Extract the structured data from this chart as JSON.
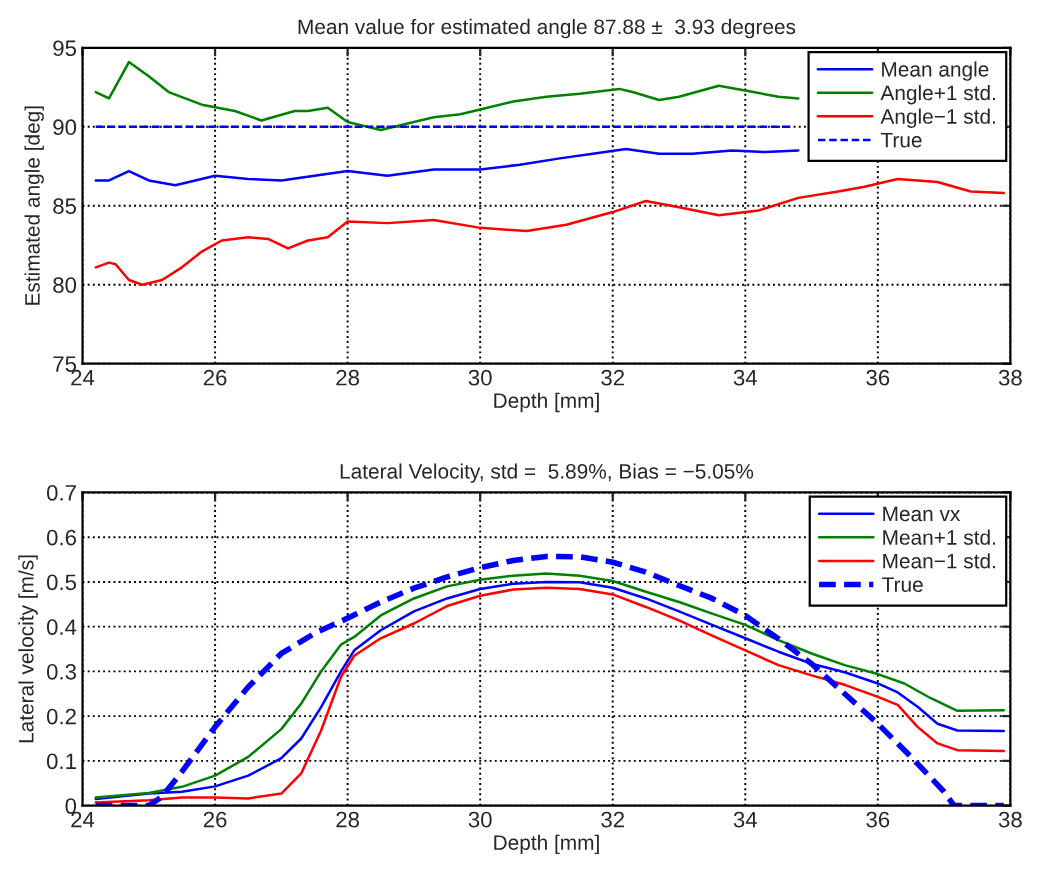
{
  "chart_data": [
    {
      "type": "line",
      "title": "Mean value for estimated angle 87.88 ±  3.93 degrees",
      "xlabel": "Depth [mm]",
      "ylabel": "Estimated angle [deg]",
      "xlim": [
        24,
        38
      ],
      "xticks": [
        24,
        26,
        28,
        30,
        32,
        34,
        36,
        38
      ],
      "ylim": [
        75,
        95
      ],
      "yticks": [
        75,
        80,
        85,
        90,
        95
      ],
      "grid": true,
      "legend": "top right",
      "series": [
        {
          "name": "Mean angle",
          "color": "#0000ff",
          "line_style": "solid",
          "x": [
            24.2,
            24.4,
            24.7,
            25.0,
            25.4,
            26.0,
            26.5,
            27.0,
            27.5,
            28.0,
            28.6,
            29.3,
            30.0,
            30.6,
            31.2,
            31.7,
            32.2,
            32.7,
            33.2,
            33.8,
            34.3,
            34.8
          ],
          "values": [
            86.6,
            86.6,
            87.2,
            86.6,
            86.3,
            86.9,
            86.7,
            86.6,
            86.9,
            87.2,
            86.9,
            87.3,
            87.3,
            87.6,
            88.0,
            88.3,
            88.6,
            88.3,
            88.3,
            88.5,
            88.4,
            88.5
          ]
        },
        {
          "name": "Angle+1 std.",
          "color": "#008000",
          "line_style": "solid",
          "x": [
            24.2,
            24.4,
            24.7,
            25.0,
            25.3,
            25.8,
            26.3,
            26.7,
            27.2,
            27.4,
            27.7,
            28.0,
            28.5,
            29.0,
            29.3,
            29.7,
            30.0,
            30.5,
            31.0,
            31.5,
            32.1,
            32.3,
            32.7,
            33.0,
            33.6,
            34.0,
            34.5,
            34.8
          ],
          "values": [
            92.2,
            91.8,
            94.1,
            93.2,
            92.2,
            91.4,
            91.0,
            90.4,
            91.0,
            91.0,
            91.2,
            90.3,
            89.8,
            90.3,
            90.6,
            90.8,
            91.1,
            91.6,
            91.9,
            92.1,
            92.4,
            92.2,
            91.7,
            91.9,
            92.6,
            92.3,
            91.9,
            91.8
          ]
        },
        {
          "name": "Angle−1 std.",
          "color": "#ff0000",
          "line_style": "solid",
          "x": [
            24.2,
            24.4,
            24.5,
            24.7,
            24.9,
            25.2,
            25.5,
            25.8,
            26.1,
            26.5,
            26.8,
            27.1,
            27.4,
            27.7,
            28.0,
            28.6,
            29.3,
            30.0,
            30.7,
            31.3,
            32.0,
            32.5,
            33.0,
            33.6,
            34.2,
            34.8,
            35.4,
            35.8,
            36.3,
            36.9,
            37.4,
            37.9
          ],
          "values": [
            81.1,
            81.4,
            81.3,
            80.3,
            80.0,
            80.3,
            81.1,
            82.1,
            82.8,
            83.0,
            82.9,
            82.3,
            82.8,
            83.0,
            84.0,
            83.9,
            84.1,
            83.6,
            83.4,
            83.8,
            84.6,
            85.3,
            84.9,
            84.4,
            84.7,
            85.5,
            85.9,
            86.2,
            86.7,
            86.5,
            85.9,
            85.8
          ]
        },
        {
          "name": "True",
          "color": "#0000ff",
          "line_style": "dashed",
          "x": [
            24.2,
            34.7
          ],
          "values": [
            90,
            90
          ]
        }
      ]
    },
    {
      "type": "line",
      "title": "Lateral Velocity, std =  5.89%, Bias = −5.05%",
      "xlabel": "Depth [mm]",
      "ylabel": "Lateral velocity [m/s]",
      "xlim": [
        24,
        38
      ],
      "xticks": [
        24,
        26,
        28,
        30,
        32,
        34,
        36,
        38
      ],
      "ylim": [
        0,
        0.7
      ],
      "yticks": [
        0,
        0.1,
        0.2,
        0.3,
        0.4,
        0.5,
        0.6,
        0.7
      ],
      "grid": true,
      "legend": "top right",
      "series": [
        {
          "name": "Mean vx",
          "color": "#0000ff",
          "line_style": "solid",
          "x": [
            24.2,
            25.0,
            25.5,
            26.0,
            26.5,
            27.0,
            27.3,
            27.6,
            27.9,
            28.1,
            28.5,
            29.0,
            29.5,
            30.0,
            30.5,
            31.0,
            31.5,
            32.0,
            32.5,
            33.0,
            33.5,
            34.0,
            34.5,
            35.0,
            35.5,
            36.0,
            36.3,
            36.6,
            36.9,
            37.2,
            37.9
          ],
          "values": [
            0.015,
            0.027,
            0.031,
            0.043,
            0.067,
            0.106,
            0.15,
            0.22,
            0.3,
            0.347,
            0.392,
            0.434,
            0.463,
            0.484,
            0.496,
            0.5,
            0.499,
            0.487,
            0.463,
            0.434,
            0.404,
            0.374,
            0.344,
            0.317,
            0.298,
            0.273,
            0.253,
            0.221,
            0.183,
            0.168,
            0.167
          ]
        },
        {
          "name": "Mean+1 std.",
          "color": "#008000",
          "line_style": "solid",
          "x": [
            24.2,
            25.0,
            25.5,
            26.0,
            26.5,
            27.0,
            27.3,
            27.6,
            27.9,
            28.1,
            28.5,
            29.0,
            29.5,
            30.0,
            30.5,
            31.0,
            31.5,
            32.0,
            32.5,
            33.0,
            33.5,
            34.0,
            34.5,
            35.0,
            35.5,
            36.0,
            36.4,
            36.8,
            37.2,
            37.9
          ],
          "values": [
            0.018,
            0.028,
            0.042,
            0.067,
            0.109,
            0.171,
            0.228,
            0.3,
            0.36,
            0.377,
            0.425,
            0.463,
            0.49,
            0.505,
            0.514,
            0.519,
            0.514,
            0.502,
            0.478,
            0.455,
            0.429,
            0.404,
            0.37,
            0.34,
            0.314,
            0.294,
            0.273,
            0.24,
            0.212,
            0.213
          ]
        },
        {
          "name": "Mean−1 std.",
          "color": "#ff0000",
          "line_style": "solid",
          "x": [
            24.2,
            25.0,
            25.5,
            26.0,
            26.5,
            27.0,
            27.3,
            27.6,
            27.9,
            28.1,
            28.5,
            29.0,
            29.5,
            30.0,
            30.5,
            31.0,
            31.5,
            32.0,
            32.5,
            33.0,
            33.5,
            34.0,
            34.5,
            35.0,
            35.5,
            36.0,
            36.3,
            36.6,
            36.9,
            37.2,
            37.9
          ],
          "values": [
            0.007,
            0.012,
            0.018,
            0.018,
            0.016,
            0.027,
            0.072,
            0.168,
            0.288,
            0.335,
            0.374,
            0.407,
            0.446,
            0.469,
            0.483,
            0.487,
            0.484,
            0.472,
            0.444,
            0.414,
            0.38,
            0.347,
            0.314,
            0.291,
            0.27,
            0.243,
            0.225,
            0.176,
            0.139,
            0.124,
            0.122
          ]
        },
        {
          "name": "True",
          "color": "#0000ff",
          "line_style": "dashed",
          "x": [
            24.2,
            25.0,
            25.2,
            25.5,
            26.0,
            26.5,
            27.0,
            27.5,
            28.0,
            28.5,
            29.0,
            29.5,
            30.0,
            30.5,
            31.0,
            31.5,
            32.0,
            32.5,
            33.0,
            33.5,
            34.0,
            34.5,
            35.0,
            35.5,
            36.0,
            36.5,
            37.0,
            37.15,
            37.9
          ],
          "values": [
            0,
            0,
            0.02,
            0.076,
            0.176,
            0.265,
            0.34,
            0.385,
            0.419,
            0.455,
            0.486,
            0.511,
            0.532,
            0.548,
            0.557,
            0.556,
            0.544,
            0.522,
            0.492,
            0.463,
            0.425,
            0.373,
            0.317,
            0.25,
            0.183,
            0.109,
            0.031,
            0,
            0
          ]
        }
      ]
    }
  ]
}
